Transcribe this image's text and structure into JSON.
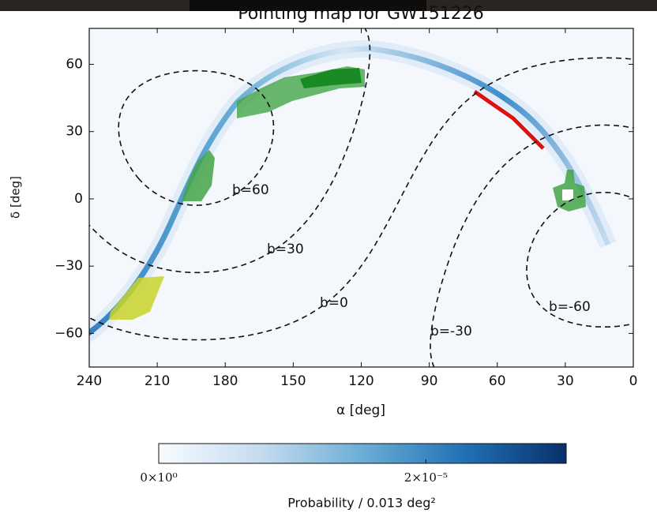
{
  "chart_data": {
    "type": "skymap",
    "title": "Pointing map for GW151226",
    "xlabel": "α [deg]",
    "ylabel": "δ [deg]",
    "xlim": [
      240,
      0
    ],
    "ylim": [
      -75,
      76
    ],
    "xticks": [
      240,
      210,
      180,
      150,
      120,
      90,
      60,
      30,
      0
    ],
    "yticks": [
      {
        "value": -60,
        "label": "−60"
      },
      {
        "value": -30,
        "label": "−30"
      },
      0,
      30,
      60
    ],
    "contours": [
      {
        "label": "b=60",
        "b": 60
      },
      {
        "label": "b=30",
        "b": 30
      },
      {
        "label": "b=0",
        "b": 0
      },
      {
        "label": "b=-30",
        "b": -30
      },
      {
        "label": "b=-60",
        "b": -60
      }
    ],
    "colorbar": {
      "label": "Probability / 0.013 deg²",
      "lim": [
        0,
        3.05e-05
      ],
      "ticks": [
        {
          "value": 0,
          "label": "0×10⁰"
        },
        {
          "value": 2e-05,
          "label": "2×10⁻⁵"
        }
      ],
      "colors": [
        "#f7fbff",
        "#c6dbef",
        "#6baed6",
        "#2171b5",
        "#08306b"
      ]
    }
  }
}
